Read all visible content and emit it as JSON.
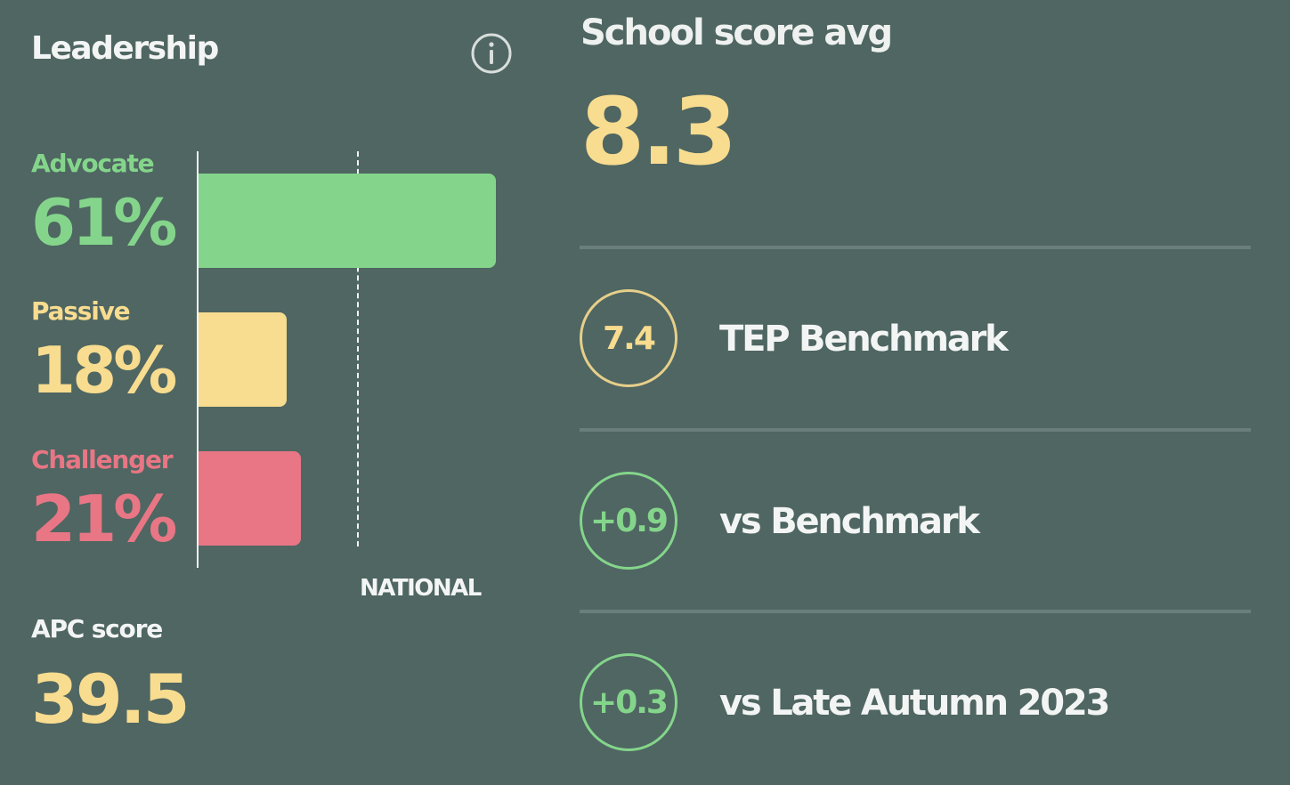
{
  "leadership": {
    "title": "Leadership",
    "info_icon": "info-icon",
    "categories": [
      {
        "key": "advocate",
        "label": "Advocate",
        "percent": "61%",
        "value": 61,
        "color": "#84d58b"
      },
      {
        "key": "passive",
        "label": "Passive",
        "percent": "18%",
        "value": 18,
        "color": "#f8dc8f"
      },
      {
        "key": "challenger",
        "label": "Challenger",
        "percent": "21%",
        "value": 21,
        "color": "#e87684"
      }
    ],
    "national_label": "NATIONAL",
    "apc_label": "APC score",
    "apc_value": "39.5"
  },
  "school": {
    "label": "School score avg",
    "value": "8.3",
    "metrics": [
      {
        "value": "7.4",
        "label": "TEP Benchmark",
        "color": "#f8dc8f",
        "ring": "#e6cf8a"
      },
      {
        "value": "+0.9",
        "label": "vs Benchmark",
        "color": "#84d58b",
        "ring": "#84d58b"
      },
      {
        "value": "+0.3",
        "label": "vs Late Autumn 2023",
        "color": "#84d58b",
        "ring": "#84d58b"
      }
    ]
  },
  "colors": {
    "background": "#4f6662",
    "divider": "#6a7f7b",
    "highlight_yellow": "#f8dc8f"
  }
}
